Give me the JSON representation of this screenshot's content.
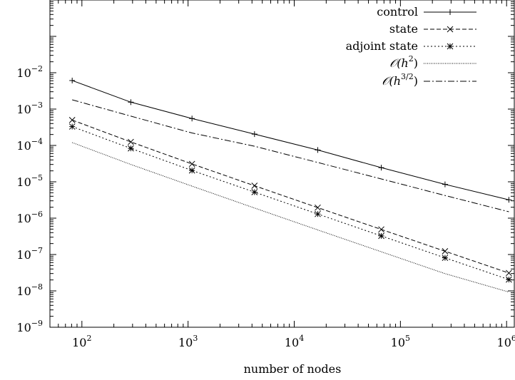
{
  "chart_data": {
    "type": "line",
    "title": "",
    "xlabel": "number of nodes",
    "ylabel": "",
    "xscale": "log",
    "yscale": "log",
    "xlim": [
      50,
      1200000
    ],
    "ylim": [
      1e-09,
      1
    ],
    "grid": false,
    "legend_position": "top-right",
    "x_ticks": [
      {
        "value": 100,
        "base": "10",
        "exp": "2"
      },
      {
        "value": 1000,
        "base": "10",
        "exp": "3"
      },
      {
        "value": 10000,
        "base": "10",
        "exp": "4"
      },
      {
        "value": 100000,
        "base": "10",
        "exp": "5"
      },
      {
        "value": 1000000,
        "base": "10",
        "exp": "6"
      }
    ],
    "y_ticks": [
      {
        "value": 0.01,
        "base": "10",
        "exp": "−2"
      },
      {
        "value": 0.001,
        "base": "10",
        "exp": "−3"
      },
      {
        "value": 0.0001,
        "base": "10",
        "exp": "−4"
      },
      {
        "value": 1e-05,
        "base": "10",
        "exp": "−5"
      },
      {
        "value": 1e-06,
        "base": "10",
        "exp": "−6"
      },
      {
        "value": 1e-07,
        "base": "10",
        "exp": "−7"
      },
      {
        "value": 1e-08,
        "base": "10",
        "exp": "−8"
      },
      {
        "value": 1e-09,
        "base": "10",
        "exp": "−9"
      }
    ],
    "x": [
      81,
      289,
      1089,
      4225,
      16641,
      66049,
      263169,
      1050625
    ],
    "series": [
      {
        "name": "control",
        "marker": "plus",
        "dash": "solid",
        "values": [
          0.0061,
          0.00155,
          0.00055,
          0.000205,
          7.5e-05,
          2.45e-05,
          8.5e-06,
          3.2e-06
        ]
      },
      {
        "name": "state",
        "marker": "cross",
        "dash": "dashed",
        "values": [
          0.0005,
          0.000125,
          3.1e-05,
          7.8e-06,
          1.95e-06,
          4.9e-07,
          1.23e-07,
          3.1e-08
        ]
      },
      {
        "name": "adjoint state",
        "marker": "star",
        "dash": "dotted",
        "values": [
          0.00033,
          8.3e-05,
          2.05e-05,
          5.2e-06,
          1.3e-06,
          3.25e-07,
          8.1e-08,
          2.05e-08
        ]
      },
      {
        "name": "O(h^2)",
        "label_main": "𝒪(h",
        "label_sup": "2",
        "label_tail": ")",
        "marker": "none",
        "dash": "finedot",
        "values": [
          0.00012,
          3e-05,
          7.6e-06,
          1.9e-06,
          4.75e-07,
          1.19e-07,
          2.98e-08,
          9.3e-09
        ]
      },
      {
        "name": "O(h^(3/2))",
        "label_main": "𝒪(h",
        "label_sup": "3/2",
        "label_tail": ")",
        "marker": "none",
        "dash": "dashdot",
        "values": [
          0.0018,
          0.00064,
          0.00022,
          9.5e-05,
          3.4e-05,
          1.2e-05,
          4.2e-06,
          1.5e-06
        ]
      }
    ]
  }
}
